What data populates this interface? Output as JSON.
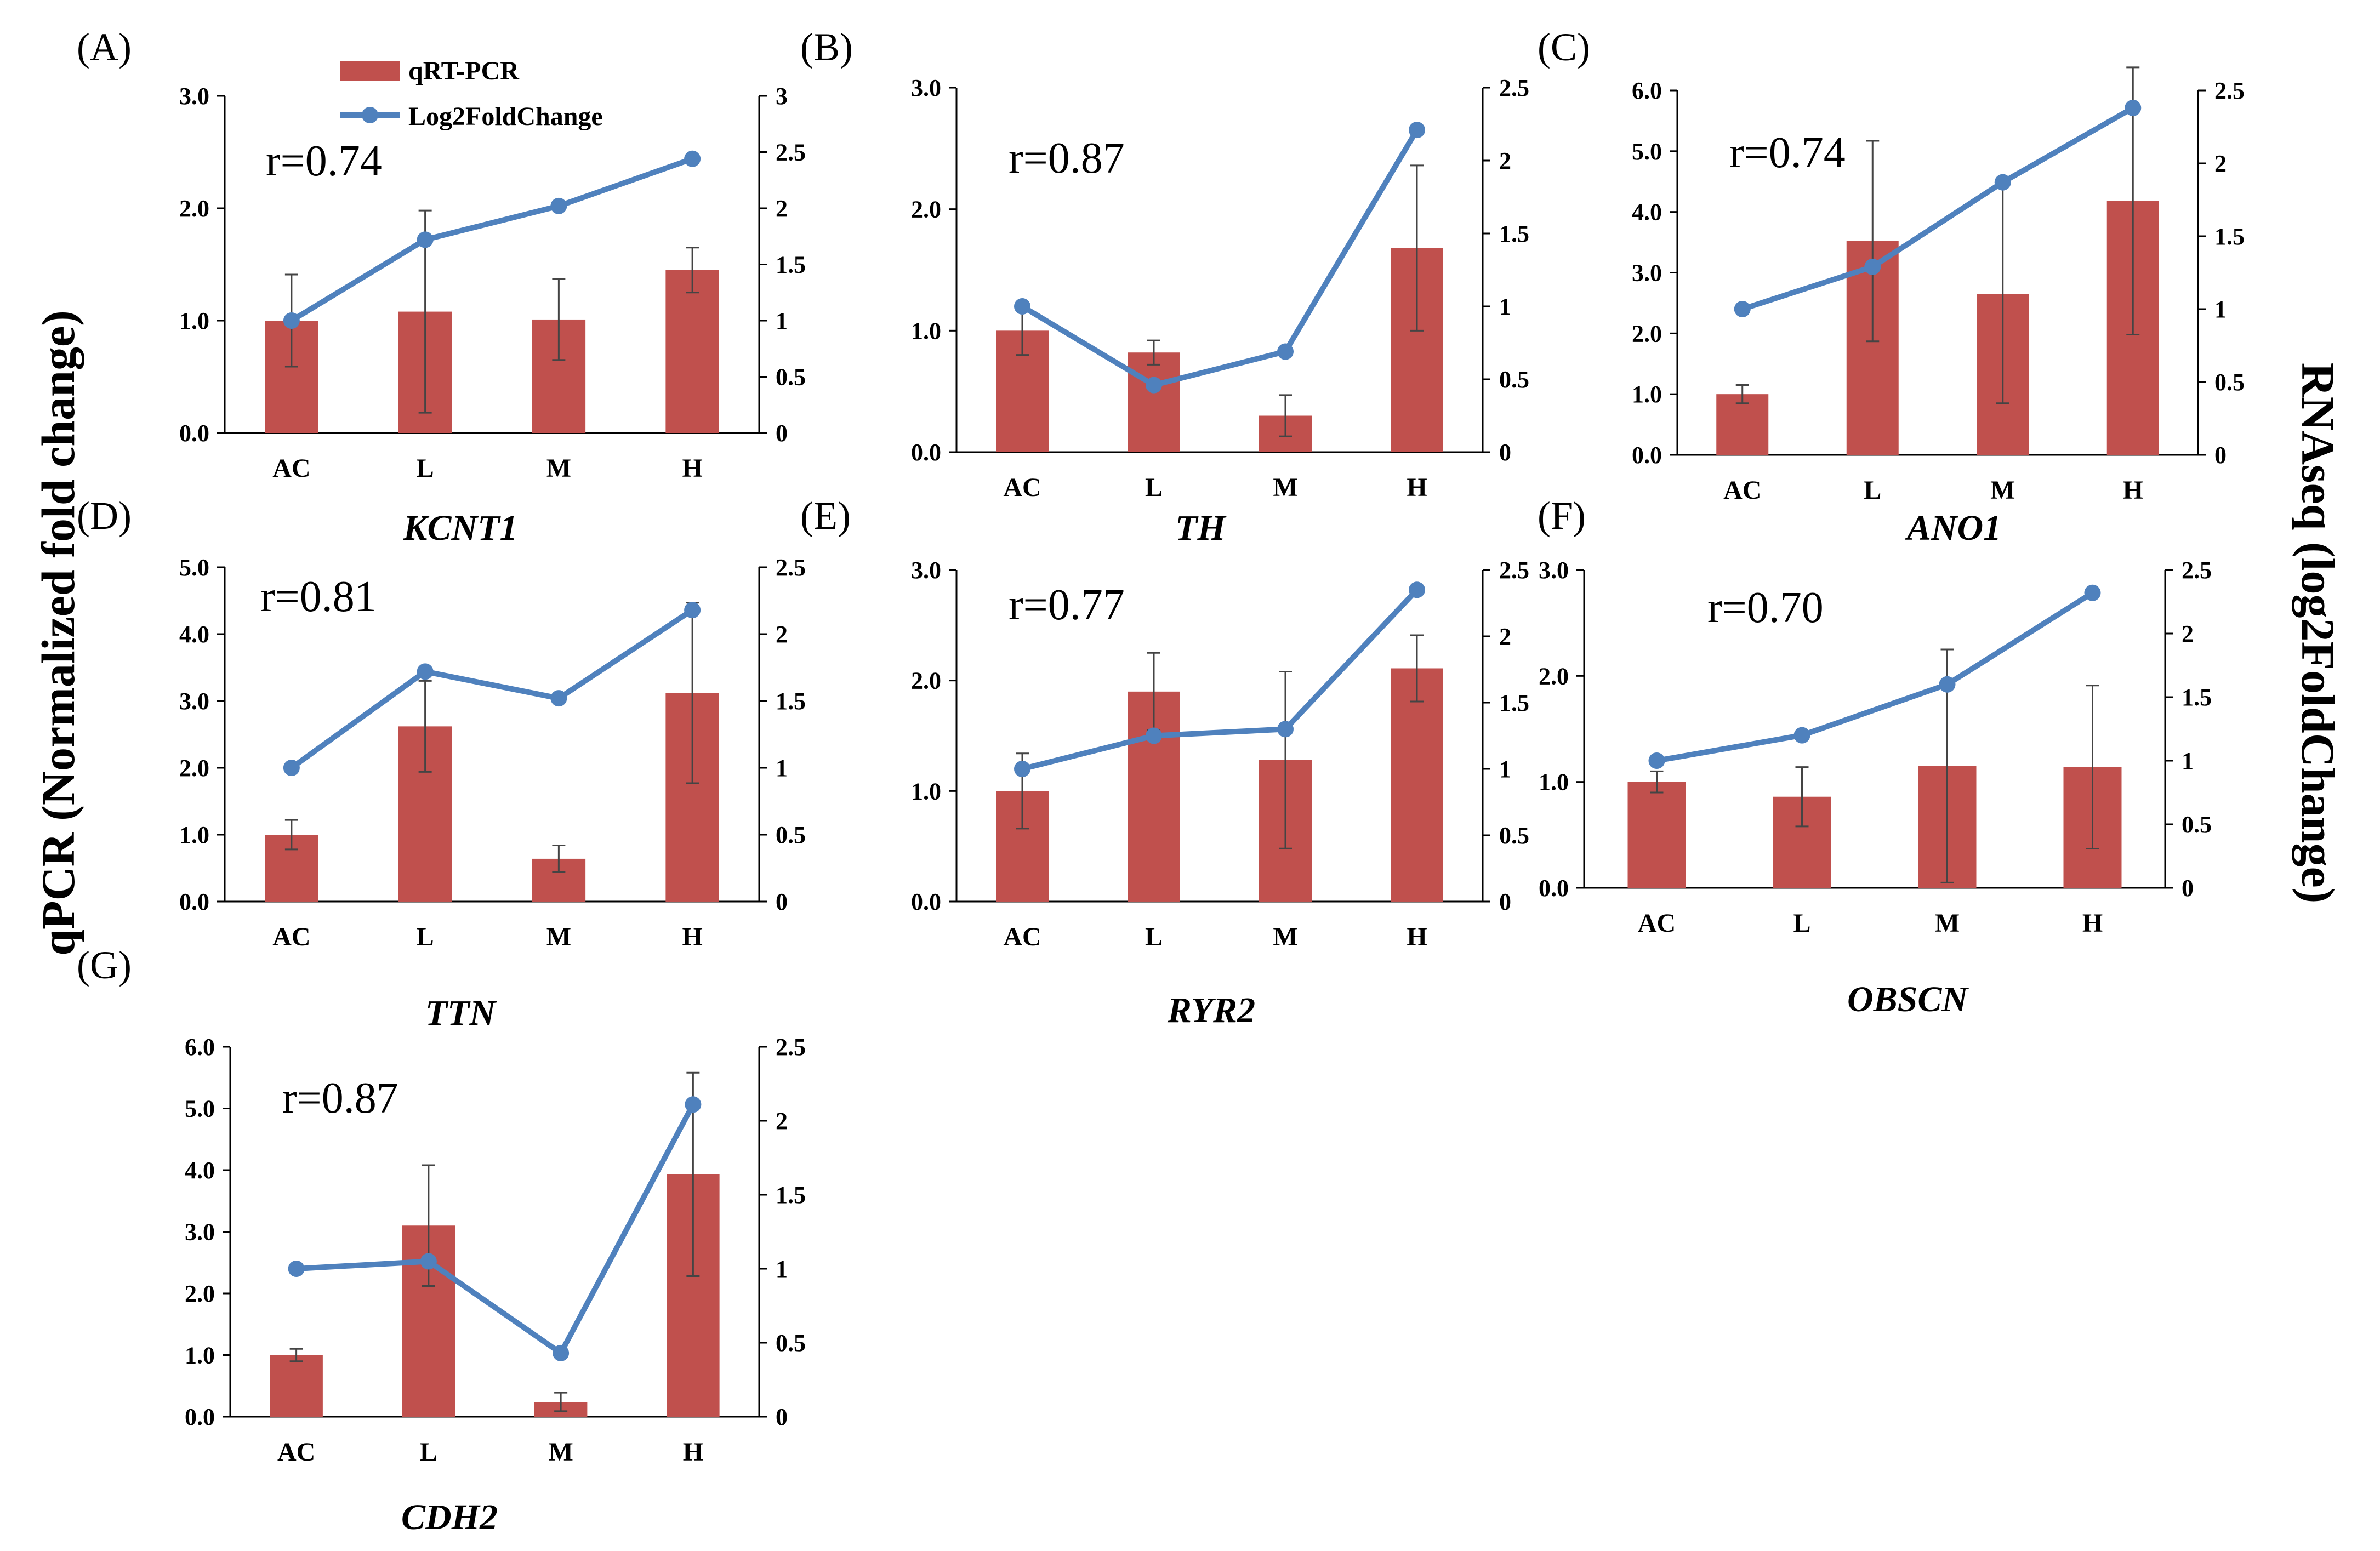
{
  "y_left_title": "qPCR (Normalized fold change)",
  "y_right_title": "RNAseq (log2FoldChange)",
  "legend": {
    "bar_label": "qRT-PCR",
    "line_label": "Log2FoldChange",
    "bar_color": "#c0504d",
    "line_color": "#4f81bd"
  },
  "chart_data": [
    {
      "type": "bar+line",
      "panel": "(A)",
      "title": "KCNT1",
      "r_label": "r=0.74",
      "categories": [
        "AC",
        "L",
        "M",
        "H"
      ],
      "left_ylim": [
        0,
        3
      ],
      "left_ticks": [
        "0.0",
        "1.0",
        "2.0",
        "3.0"
      ],
      "right_ylim": [
        0,
        3
      ],
      "right_ticks": [
        "0",
        "0.5",
        "1",
        "1.5",
        "2",
        "2.5",
        "3"
      ],
      "bars": [
        1.0,
        1.08,
        1.01,
        1.45
      ],
      "errors": [
        0.41,
        0.9,
        0.36,
        0.2
      ],
      "line": [
        1.0,
        1.72,
        2.02,
        2.44
      ]
    },
    {
      "type": "bar+line",
      "panel": "(B)",
      "title": "TH",
      "r_label": "r=0.87",
      "categories": [
        "AC",
        "L",
        "M",
        "H"
      ],
      "left_ylim": [
        0,
        3
      ],
      "left_ticks": [
        "0.0",
        "1.0",
        "2.0",
        "3.0"
      ],
      "right_ylim": [
        0,
        2.5
      ],
      "right_ticks": [
        "0",
        "0.5",
        "1",
        "1.5",
        "2",
        "2.5"
      ],
      "bars": [
        1.0,
        0.82,
        0.3,
        1.68
      ],
      "errors": [
        0.2,
        0.1,
        0.17,
        0.68
      ],
      "line": [
        1.0,
        0.46,
        0.69,
        2.21
      ]
    },
    {
      "type": "bar+line",
      "panel": "(C)",
      "title": "ANO1",
      "r_label": "r=0.74",
      "categories": [
        "AC",
        "L",
        "M",
        "H"
      ],
      "left_ylim": [
        0,
        6
      ],
      "left_ticks": [
        "0.0",
        "1.0",
        "2.0",
        "3.0",
        "4.0",
        "5.0",
        "6.0"
      ],
      "right_ylim": [
        0,
        2.5
      ],
      "right_ticks": [
        "0",
        "0.5",
        "1",
        "1.5",
        "2",
        "2.5"
      ],
      "bars": [
        1.0,
        3.52,
        2.65,
        4.18
      ],
      "errors": [
        0.15,
        1.65,
        1.8,
        2.2
      ],
      "line": [
        1.0,
        1.29,
        1.87,
        2.38
      ]
    },
    {
      "type": "bar+line",
      "panel": "(D)",
      "title": "TTN",
      "r_label": "r=0.81",
      "categories": [
        "AC",
        "L",
        "M",
        "H"
      ],
      "left_ylim": [
        0,
        5
      ],
      "left_ticks": [
        "0.0",
        "1.0",
        "2.0",
        "3.0",
        "4.0",
        "5.0"
      ],
      "right_ylim": [
        0,
        2.5
      ],
      "right_ticks": [
        "0",
        "0.5",
        "1",
        "1.5",
        "2",
        "2.5"
      ],
      "bars": [
        1.0,
        2.62,
        0.64,
        3.12
      ],
      "errors": [
        0.22,
        0.68,
        0.2,
        1.35
      ],
      "line": [
        1.0,
        1.72,
        1.52,
        2.18
      ]
    },
    {
      "type": "bar+line",
      "panel": "(E)",
      "title": "RYR2",
      "r_label": "r=0.77",
      "categories": [
        "AC",
        "L",
        "M",
        "H"
      ],
      "left_ylim": [
        0,
        3
      ],
      "left_ticks": [
        "0.0",
        "1.0",
        "2.0",
        "3.0"
      ],
      "right_ylim": [
        0,
        2.5
      ],
      "right_ticks": [
        "0",
        "0.5",
        "1",
        "1.5",
        "2",
        "2.5"
      ],
      "bars": [
        1.0,
        1.9,
        1.28,
        2.11
      ],
      "errors": [
        0.34,
        0.35,
        0.8,
        0.3
      ],
      "line": [
        1.0,
        1.25,
        1.3,
        2.35
      ]
    },
    {
      "type": "bar+line",
      "panel": "(F)",
      "title": "OBSCN",
      "r_label": "r=0.70",
      "categories": [
        "AC",
        "L",
        "M",
        "H"
      ],
      "left_ylim": [
        0,
        3
      ],
      "left_ticks": [
        "0.0",
        "1.0",
        "2.0",
        "3.0"
      ],
      "right_ylim": [
        0,
        2.5
      ],
      "right_ticks": [
        "0",
        "0.5",
        "1",
        "1.5",
        "2",
        "2.5"
      ],
      "bars": [
        1.0,
        0.86,
        1.15,
        1.14
      ],
      "errors": [
        0.1,
        0.28,
        1.1,
        0.77
      ],
      "line": [
        1.0,
        1.2,
        1.6,
        2.32
      ]
    },
    {
      "type": "bar+line",
      "panel": "(G)",
      "title": "CDH2",
      "r_label": "r=0.87",
      "categories": [
        "AC",
        "L",
        "M",
        "H"
      ],
      "left_ylim": [
        0,
        6
      ],
      "left_ticks": [
        "0.0",
        "1.0",
        "2.0",
        "3.0",
        "4.0",
        "5.0",
        "6.0"
      ],
      "right_ylim": [
        0,
        2.5
      ],
      "right_ticks": [
        "0",
        "0.5",
        "1",
        "1.5",
        "2",
        "2.5"
      ],
      "bars": [
        1.0,
        3.1,
        0.24,
        3.93
      ],
      "errors": [
        0.1,
        0.98,
        0.15,
        1.65
      ],
      "line": [
        1.0,
        1.05,
        0.43,
        2.11
      ]
    }
  ]
}
